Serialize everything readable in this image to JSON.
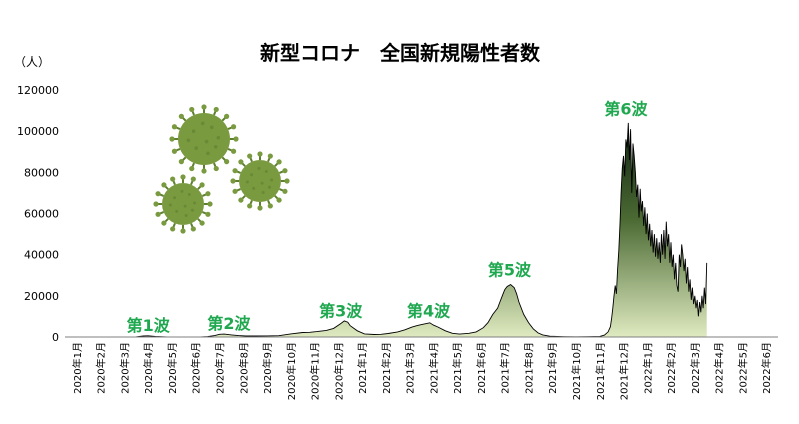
{
  "chart_data": {
    "type": "area",
    "title": "新型コロナ　全国新規陽性者数",
    "ylabel": "（人）",
    "xlabel": "",
    "ylim": [
      0,
      120000
    ],
    "yticks": [
      "0",
      "20000",
      "40000",
      "60000",
      "80000",
      "100000",
      "120000"
    ],
    "categories": [
      "2020年1月",
      "2020年2月",
      "2020年3月",
      "2020年4月",
      "2020年5月",
      "2020年6月",
      "2020年7月",
      "2020年8月",
      "2020年9月",
      "2020年10月",
      "2020年11月",
      "2020年12月",
      "2021年1月",
      "2021年2月",
      "2021年3月",
      "2021年4月",
      "2021年5月",
      "2021年6月",
      "2021年7月",
      "2021年8月",
      "2021年9月",
      "2021年10月",
      "2021年11月",
      "2021年12月",
      "2022年1月",
      "2022年2月",
      "2022年3月",
      "2022年4月",
      "2022年5月",
      "2022年6月"
    ],
    "series": [
      {
        "values": [
          [
            0,
            0
          ],
          [
            2.5,
            0
          ],
          [
            3.0,
            100
          ],
          [
            3.3,
            500
          ],
          [
            3.5,
            600
          ],
          [
            3.8,
            300
          ],
          [
            4.3,
            60
          ],
          [
            5.0,
            50
          ],
          [
            5.7,
            60
          ],
          [
            6.0,
            200
          ],
          [
            6.3,
            700
          ],
          [
            6.5,
            1300
          ],
          [
            6.7,
            1400
          ],
          [
            7.0,
            1000
          ],
          [
            7.3,
            700
          ],
          [
            7.6,
            500
          ],
          [
            8.0,
            500
          ],
          [
            8.5,
            550
          ],
          [
            9.0,
            650
          ],
          [
            9.5,
            1500
          ],
          [
            10.0,
            2200
          ],
          [
            10.3,
            2300
          ],
          [
            10.6,
            2600
          ],
          [
            11.0,
            3200
          ],
          [
            11.3,
            4200
          ],
          [
            11.6,
            6500
          ],
          [
            11.75,
            7800
          ],
          [
            11.9,
            7200
          ],
          [
            12.0,
            5500
          ],
          [
            12.3,
            3000
          ],
          [
            12.6,
            1500
          ],
          [
            13.0,
            1200
          ],
          [
            13.3,
            1300
          ],
          [
            13.6,
            1700
          ],
          [
            14.0,
            2500
          ],
          [
            14.3,
            3500
          ],
          [
            14.6,
            4800
          ],
          [
            14.8,
            5500
          ],
          [
            15.0,
            6000
          ],
          [
            15.2,
            6500
          ],
          [
            15.35,
            6900
          ],
          [
            15.5,
            5800
          ],
          [
            15.7,
            4800
          ],
          [
            16.0,
            3000
          ],
          [
            16.3,
            1800
          ],
          [
            16.6,
            1400
          ],
          [
            17.0,
            1800
          ],
          [
            17.3,
            2500
          ],
          [
            17.6,
            4500
          ],
          [
            17.8,
            7000
          ],
          [
            18.0,
            11000
          ],
          [
            18.2,
            14000
          ],
          [
            18.3,
            17000
          ],
          [
            18.4,
            20000
          ],
          [
            18.5,
            23000
          ],
          [
            18.6,
            24500
          ],
          [
            18.75,
            25500
          ],
          [
            18.9,
            24000
          ],
          [
            19.0,
            21000
          ],
          [
            19.1,
            17000
          ],
          [
            19.3,
            11000
          ],
          [
            19.5,
            7000
          ],
          [
            19.7,
            4000
          ],
          [
            19.9,
            2000
          ],
          [
            20.1,
            1000
          ],
          [
            20.4,
            400
          ],
          [
            20.7,
            250
          ],
          [
            21.0,
            150
          ],
          [
            21.5,
            120
          ],
          [
            22.0,
            130
          ],
          [
            22.5,
            300
          ],
          [
            22.7,
            900
          ],
          [
            22.85,
            2500
          ],
          [
            22.95,
            5000
          ],
          [
            23.0,
            9000
          ],
          [
            23.05,
            14000
          ],
          [
            23.1,
            20000
          ],
          [
            23.15,
            25000
          ],
          [
            23.2,
            21000
          ],
          [
            23.25,
            33000
          ],
          [
            23.3,
            42000
          ],
          [
            23.35,
            55000
          ],
          [
            23.4,
            70000
          ],
          [
            23.45,
            82000
          ],
          [
            23.5,
            88000
          ],
          [
            23.55,
            78000
          ],
          [
            23.6,
            96000
          ],
          [
            23.65,
            92000
          ],
          [
            23.7,
            104000
          ],
          [
            23.75,
            86000
          ],
          [
            23.8,
            101000
          ],
          [
            23.85,
            70000
          ],
          [
            23.9,
            94000
          ],
          [
            23.95,
            88000
          ],
          [
            24.0,
            80000
          ],
          [
            24.05,
            68000
          ],
          [
            24.1,
            74000
          ],
          [
            24.15,
            58000
          ],
          [
            24.2,
            72000
          ],
          [
            24.25,
            61000
          ],
          [
            24.3,
            66000
          ],
          [
            24.35,
            54000
          ],
          [
            24.4,
            63000
          ],
          [
            24.45,
            50000
          ],
          [
            24.5,
            60000
          ],
          [
            24.55,
            47000
          ],
          [
            24.6,
            55000
          ],
          [
            24.65,
            44000
          ],
          [
            24.7,
            52000
          ],
          [
            24.75,
            41000
          ],
          [
            24.8,
            50000
          ],
          [
            24.85,
            39000
          ],
          [
            24.9,
            48000
          ],
          [
            24.95,
            38000
          ],
          [
            25.0,
            46000
          ],
          [
            25.05,
            36000
          ],
          [
            25.1,
            50000
          ],
          [
            25.15,
            40000
          ],
          [
            25.2,
            52000
          ],
          [
            25.25,
            38000
          ],
          [
            25.3,
            56000
          ],
          [
            25.35,
            44000
          ],
          [
            25.4,
            50000
          ],
          [
            25.45,
            36000
          ],
          [
            25.5,
            46000
          ],
          [
            25.55,
            34000
          ],
          [
            25.6,
            40000
          ],
          [
            25.65,
            28000
          ],
          [
            25.7,
            36000
          ],
          [
            25.75,
            25000
          ],
          [
            25.8,
            22000
          ],
          [
            25.85,
            40000
          ],
          [
            25.9,
            34000
          ],
          [
            25.95,
            45000
          ],
          [
            26.0,
            40000
          ],
          [
            26.05,
            32000
          ],
          [
            26.1,
            38000
          ],
          [
            26.15,
            26000
          ],
          [
            26.2,
            34000
          ],
          [
            26.25,
            22000
          ],
          [
            26.3,
            28000
          ],
          [
            26.35,
            18000
          ],
          [
            26.4,
            24000
          ],
          [
            26.45,
            16000
          ],
          [
            26.5,
            20000
          ],
          [
            26.55,
            14000
          ],
          [
            26.6,
            18000
          ],
          [
            26.65,
            10000
          ],
          [
            26.7,
            17000
          ],
          [
            26.75,
            12000
          ],
          [
            26.8,
            20000
          ],
          [
            26.85,
            14000
          ],
          [
            26.9,
            24000
          ],
          [
            26.95,
            16000
          ],
          [
            27.0,
            36000
          ]
        ]
      }
    ],
    "annotations": [
      {
        "text": "第1波",
        "x": 3.5,
        "y": 3000
      },
      {
        "text": "第2波",
        "x": 6.9,
        "y": 4000
      },
      {
        "text": "第3波",
        "x": 11.6,
        "y": 10000
      },
      {
        "text": "第4波",
        "x": 15.3,
        "y": 10000
      },
      {
        "text": "第5波",
        "x": 18.7,
        "y": 30000
      },
      {
        "text": "第6波",
        "x": 23.6,
        "y": 108000
      }
    ],
    "colors": {
      "area_top": "#0f2310",
      "area_bottom": "#dfeac0",
      "line": "#000000",
      "wave_label": "#1fa84f",
      "virus": "#7a9a40",
      "virus_dark": "#5d7f2f"
    },
    "grid": false
  },
  "decor": {
    "virus_icons": [
      "virus-icon",
      "virus-icon",
      "virus-icon"
    ]
  }
}
